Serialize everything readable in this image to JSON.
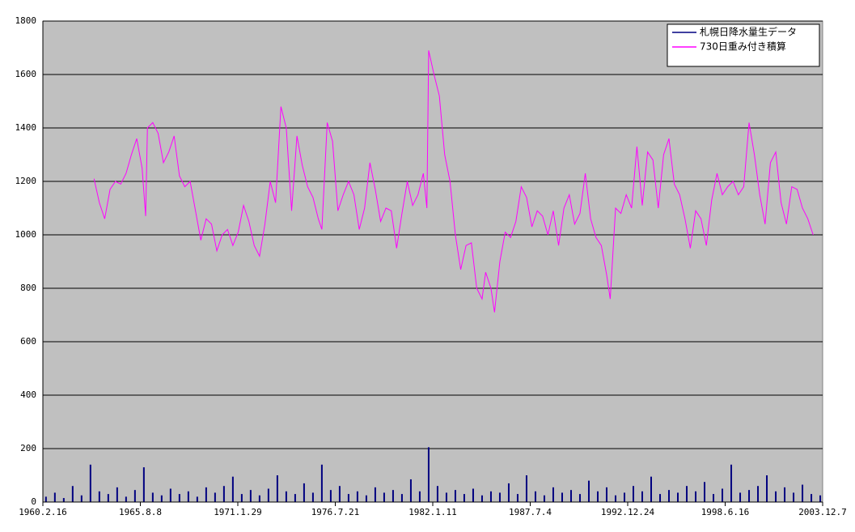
{
  "chart_data": {
    "type": "combo",
    "xlim": [
      1960.126,
      2003.934
    ],
    "xticks": [
      {
        "value": 1960.126,
        "label": "1960.2.16"
      },
      {
        "value": 1965.602,
        "label": "1965.8.8"
      },
      {
        "value": 1971.078,
        "label": "1971.1.29"
      },
      {
        "value": 1976.554,
        "label": "1976.7.21"
      },
      {
        "value": 1982.03,
        "label": "1982.1.11"
      },
      {
        "value": 1987.506,
        "label": "1987.7.4"
      },
      {
        "value": 1992.982,
        "label": "1992.12.24"
      },
      {
        "value": 1998.458,
        "label": "1998.6.16"
      },
      {
        "value": 2003.934,
        "label": "2003.12.7"
      }
    ],
    "ylim": [
      0,
      1800
    ],
    "yticks": [
      0,
      200,
      400,
      600,
      800,
      1000,
      1200,
      1400,
      1600,
      1800
    ],
    "grid": true,
    "background": "#c0c0c0",
    "legend": "top-right",
    "series": [
      {
        "name": "札幌日降水量生データ",
        "type": "bar",
        "color": "#000080",
        "x": [
          1960.3,
          1960.8,
          1961.3,
          1961.8,
          1962.3,
          1962.8,
          1963.3,
          1963.8,
          1964.3,
          1964.8,
          1965.3,
          1965.8,
          1966.3,
          1966.8,
          1967.3,
          1967.8,
          1968.3,
          1968.8,
          1969.3,
          1969.8,
          1970.3,
          1970.8,
          1971.3,
          1971.8,
          1972.3,
          1972.8,
          1973.3,
          1973.8,
          1974.3,
          1974.8,
          1975.3,
          1975.8,
          1976.3,
          1976.8,
          1977.3,
          1977.8,
          1978.3,
          1978.8,
          1979.3,
          1979.8,
          1980.3,
          1980.8,
          1981.3,
          1981.8,
          1982.3,
          1982.8,
          1983.3,
          1983.8,
          1984.3,
          1984.8,
          1985.3,
          1985.8,
          1986.3,
          1986.8,
          1987.3,
          1987.8,
          1988.3,
          1988.8,
          1989.3,
          1989.8,
          1990.3,
          1990.8,
          1991.3,
          1991.8,
          1992.3,
          1992.8,
          1993.3,
          1993.8,
          1994.3,
          1994.8,
          1995.3,
          1995.8,
          1996.3,
          1996.8,
          1997.3,
          1997.8,
          1998.3,
          1998.8,
          1999.3,
          1999.8,
          2000.3,
          2000.8,
          2001.3,
          2001.8,
          2002.3,
          2002.8,
          2003.3,
          2003.8
        ],
        "values": [
          20,
          35,
          15,
          60,
          25,
          140,
          40,
          30,
          55,
          20,
          45,
          130,
          35,
          25,
          50,
          30,
          40,
          20,
          55,
          35,
          60,
          95,
          30,
          45,
          25,
          50,
          100,
          40,
          30,
          70,
          35,
          140,
          45,
          60,
          30,
          40,
          25,
          55,
          35,
          45,
          30,
          85,
          40,
          205,
          60,
          35,
          45,
          30,
          50,
          25,
          40,
          35,
          70,
          30,
          100,
          40,
          25,
          55,
          35,
          45,
          30,
          80,
          40,
          55,
          25,
          35,
          60,
          40,
          95,
          30,
          45,
          35,
          60,
          40,
          75,
          30,
          50,
          140,
          35,
          45,
          60,
          100,
          40,
          55,
          35,
          65,
          30,
          25
        ]
      },
      {
        "name": "730日重み付き積算",
        "type": "line",
        "color": "#ff00ff",
        "x": [
          1963.0,
          1963.3,
          1963.6,
          1963.9,
          1964.2,
          1964.5,
          1964.8,
          1965.1,
          1965.4,
          1965.7,
          1965.9,
          1966.0,
          1966.3,
          1966.6,
          1966.9,
          1967.2,
          1967.5,
          1967.8,
          1968.1,
          1968.4,
          1968.7,
          1969.0,
          1969.3,
          1969.6,
          1969.9,
          1970.2,
          1970.5,
          1970.8,
          1971.1,
          1971.4,
          1971.7,
          1972.0,
          1972.3,
          1972.6,
          1972.9,
          1973.2,
          1973.5,
          1973.8,
          1974.1,
          1974.4,
          1974.7,
          1975.0,
          1975.3,
          1975.6,
          1975.8,
          1976.1,
          1976.4,
          1976.7,
          1977.0,
          1977.3,
          1977.6,
          1977.9,
          1978.2,
          1978.5,
          1978.8,
          1979.1,
          1979.4,
          1979.7,
          1980.0,
          1980.3,
          1980.6,
          1980.9,
          1981.2,
          1981.5,
          1981.7,
          1981.8,
          1982.1,
          1982.4,
          1982.7,
          1983.0,
          1983.3,
          1983.6,
          1983.9,
          1984.2,
          1984.5,
          1984.8,
          1985.0,
          1985.3,
          1985.5,
          1985.8,
          1986.1,
          1986.4,
          1986.7,
          1987.0,
          1987.3,
          1987.6,
          1987.9,
          1988.2,
          1988.5,
          1988.8,
          1989.1,
          1989.4,
          1989.7,
          1990.0,
          1990.3,
          1990.6,
          1990.9,
          1991.2,
          1991.5,
          1991.8,
          1992.0,
          1992.3,
          1992.6,
          1992.9,
          1993.2,
          1993.5,
          1993.8,
          1994.1,
          1994.4,
          1994.7,
          1995.0,
          1995.3,
          1995.6,
          1995.9,
          1996.2,
          1996.5,
          1996.8,
          1997.1,
          1997.4,
          1997.7,
          1998.0,
          1998.3,
          1998.6,
          1998.9,
          1999.2,
          1999.5,
          1999.8,
          2000.1,
          2000.4,
          2000.7,
          2001.0,
          2001.3,
          2001.6,
          2001.9,
          2002.2,
          2002.5,
          2002.8,
          2003.1,
          2003.4
        ],
        "values": [
          1210,
          1120,
          1060,
          1170,
          1200,
          1190,
          1230,
          1300,
          1360,
          1250,
          1070,
          1400,
          1420,
          1380,
          1270,
          1310,
          1370,
          1220,
          1180,
          1200,
          1090,
          980,
          1060,
          1040,
          940,
          1000,
          1020,
          960,
          1010,
          1110,
          1050,
          960,
          920,
          1040,
          1200,
          1120,
          1480,
          1400,
          1090,
          1370,
          1260,
          1180,
          1140,
          1060,
          1020,
          1420,
          1350,
          1090,
          1150,
          1200,
          1150,
          1020,
          1100,
          1270,
          1170,
          1050,
          1100,
          1090,
          950,
          1080,
          1200,
          1110,
          1150,
          1230,
          1100,
          1690,
          1600,
          1520,
          1300,
          1200,
          1000,
          870,
          960,
          970,
          800,
          760,
          860,
          800,
          710,
          900,
          1010,
          990,
          1050,
          1180,
          1140,
          1030,
          1090,
          1070,
          1000,
          1090,
          960,
          1100,
          1150,
          1040,
          1080,
          1230,
          1060,
          990,
          960,
          850,
          760,
          1100,
          1080,
          1150,
          1100,
          1330,
          1110,
          1310,
          1280,
          1100,
          1300,
          1360,
          1190,
          1150,
          1060,
          950,
          1090,
          1060,
          960,
          1130,
          1230,
          1150,
          1180,
          1200,
          1150,
          1180,
          1420,
          1300,
          1150,
          1040,
          1270,
          1310,
          1120,
          1040,
          1180,
          1170,
          1100,
          1060,
          1000
        ]
      }
    ]
  }
}
